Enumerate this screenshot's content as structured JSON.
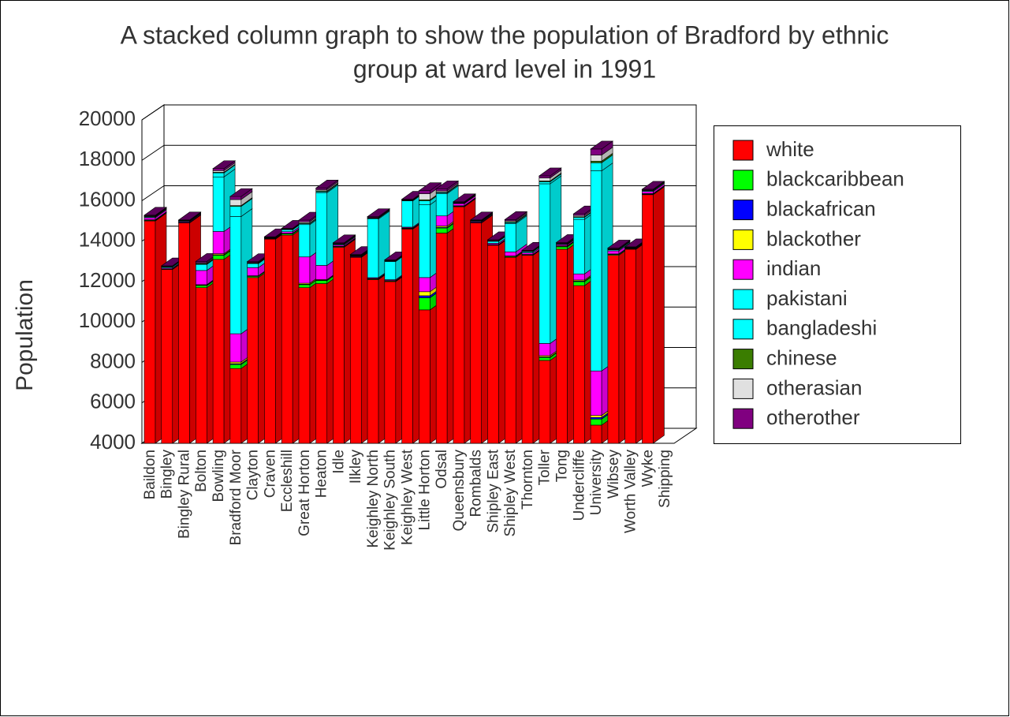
{
  "chart_data": {
    "type": "bar3d_stacked",
    "title": [
      "A stacked column graph to show the population of Bradford by ethnic",
      "group at ward level in 1991"
    ],
    "y_label": "Population",
    "categories": [
      "Baildon",
      "Bingley",
      "Bingley Rural",
      "Bolton",
      "Bowling",
      "Bradford Moor",
      "Clayton",
      "Craven",
      "Eccleshill",
      "Great Horton",
      "Heaton",
      "Idle",
      "Ilkley",
      "Keighley North",
      "Keighley South",
      "Keighley West",
      "Little Horton",
      "Odsal",
      "Queensbury",
      "Rombalds",
      "Shipley East",
      "Shipley West",
      "Thornton",
      "Toller",
      "Tong",
      "Undercliffe",
      "University",
      "Wibsey",
      "Worth Valley",
      "Wyke",
      "Shipping"
    ],
    "ylim": [
      4000,
      20000
    ],
    "yticks": [
      4000,
      6000,
      8000,
      10000,
      12000,
      14000,
      16000,
      18000,
      20000
    ],
    "grid": true,
    "legend": "right",
    "series": [
      {
        "name": "white",
        "color": "#ff0000",
        "values": [
          15000,
          12600,
          14900,
          11700,
          13100,
          7700,
          12200,
          14100,
          14300,
          11700,
          11900,
          13700,
          13200,
          12100,
          12000,
          14600,
          10600,
          14400,
          15700,
          14900,
          13800,
          13200,
          13300,
          8100,
          13600,
          11800,
          4900,
          13300,
          13600,
          16300,
          null
        ]
      },
      {
        "name": "blackcaribbean",
        "color": "#00ff00",
        "values": [
          30,
          20,
          10,
          100,
          200,
          200,
          60,
          10,
          60,
          150,
          150,
          30,
          10,
          30,
          30,
          30,
          600,
          250,
          30,
          10,
          20,
          40,
          30,
          150,
          120,
          200,
          300,
          40,
          10,
          30,
          null
        ]
      },
      {
        "name": "blackafrican",
        "color": "#0000ff",
        "values": [
          10,
          5,
          5,
          20,
          30,
          40,
          10,
          5,
          10,
          20,
          20,
          5,
          5,
          5,
          5,
          5,
          100,
          40,
          5,
          5,
          5,
          10,
          5,
          30,
          20,
          30,
          80,
          10,
          5,
          5,
          null
        ]
      },
      {
        "name": "blackother",
        "color": "#ffff00",
        "values": [
          20,
          10,
          10,
          30,
          50,
          80,
          20,
          10,
          20,
          50,
          30,
          20,
          10,
          20,
          20,
          20,
          200,
          60,
          20,
          10,
          10,
          20,
          10,
          60,
          30,
          50,
          100,
          20,
          10,
          20,
          null
        ]
      },
      {
        "name": "indian",
        "color": "#ff00ff",
        "values": [
          100,
          40,
          40,
          700,
          1100,
          1400,
          400,
          20,
          80,
          1300,
          700,
          60,
          30,
          40,
          40,
          40,
          700,
          500,
          100,
          40,
          60,
          200,
          80,
          600,
          60,
          300,
          2200,
          150,
          20,
          100,
          null
        ]
      },
      {
        "name": "pakistani",
        "color": "#00ffff",
        "values": [
          40,
          50,
          30,
          300,
          2700,
          5800,
          200,
          20,
          100,
          1600,
          3600,
          40,
          20,
          2900,
          900,
          1300,
          3600,
          1100,
          30,
          30,
          100,
          1400,
          60,
          7900,
          30,
          2700,
          9900,
          50,
          20,
          40,
          null
        ]
      },
      {
        "name": "bangladeshi",
        "color": "#00ffff",
        "values": [
          5,
          5,
          5,
          20,
          200,
          500,
          10,
          5,
          5,
          50,
          50,
          5,
          5,
          40,
          20,
          20,
          200,
          50,
          5,
          5,
          5,
          50,
          5,
          100,
          5,
          100,
          400,
          10,
          5,
          5,
          null
        ]
      },
      {
        "name": "chinese",
        "color": "#3a7d00",
        "values": [
          30,
          20,
          20,
          30,
          30,
          40,
          30,
          20,
          20,
          30,
          40,
          20,
          30,
          20,
          20,
          20,
          50,
          30,
          20,
          20,
          20,
          40,
          20,
          40,
          20,
          30,
          80,
          20,
          20,
          20,
          null
        ]
      },
      {
        "name": "otherasian",
        "color": "#e0e0e0",
        "values": [
          20,
          10,
          10,
          40,
          80,
          300,
          20,
          10,
          10,
          60,
          60,
          10,
          10,
          20,
          10,
          10,
          300,
          60,
          10,
          10,
          10,
          50,
          10,
          150,
          10,
          60,
          300,
          20,
          10,
          10,
          null
        ]
      },
      {
        "name": "otherother",
        "color": "#800080",
        "values": [
          30,
          20,
          20,
          60,
          100,
          150,
          40,
          20,
          30,
          80,
          80,
          30,
          20,
          40,
          30,
          30,
          150,
          100,
          30,
          20,
          40,
          60,
          30,
          100,
          40,
          80,
          300,
          40,
          20,
          40,
          null
        ]
      }
    ]
  }
}
